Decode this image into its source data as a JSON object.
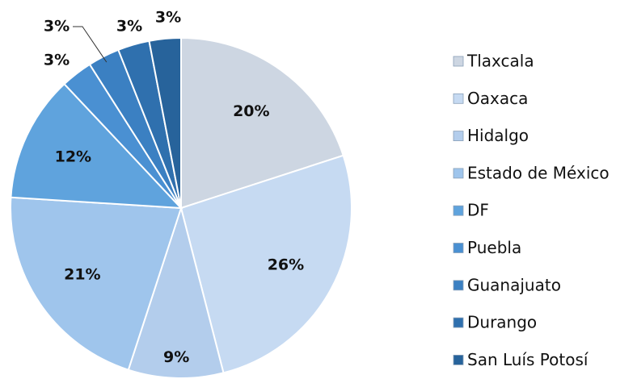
{
  "chart_data": {
    "type": "pie",
    "categories": [
      "Tlaxcala",
      "Oaxaca",
      "Hidalgo",
      "Estado de México",
      "DF",
      "Puebla",
      "Guanajuato",
      "Durango",
      "San Luís Potosí"
    ],
    "values": [
      20,
      26,
      9,
      21,
      12,
      3,
      3,
      3,
      3
    ],
    "value_labels": [
      "20%",
      "26%",
      "9%",
      "21%",
      "12%",
      "3%",
      "3%",
      "3%",
      "3%"
    ],
    "colors": [
      "#cdd6e2",
      "#c6daf2",
      "#b3cdec",
      "#9fc5ec",
      "#5fa3dd",
      "#4a90d2",
      "#3b80c2",
      "#2f70ae",
      "#27639b"
    ],
    "legend": "right"
  }
}
